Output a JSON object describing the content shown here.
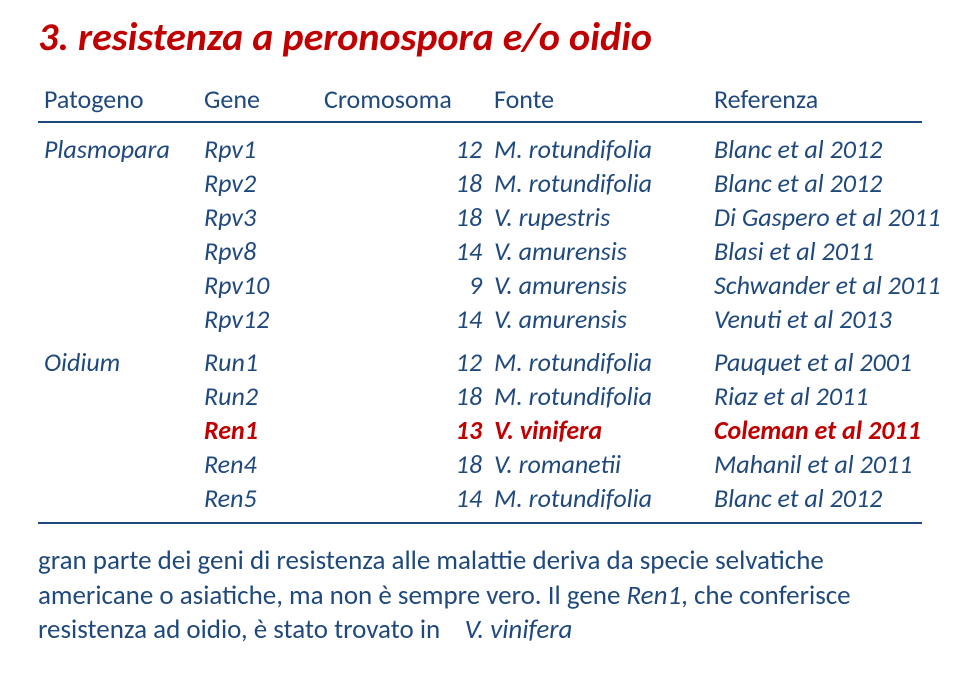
{
  "colors": {
    "text": "#1f497d",
    "title": "#c00000",
    "highlight": "#c00000",
    "rule": "#1f497d",
    "background": "#ffffff"
  },
  "title": "3. resistenza a peronospora e/o oidio",
  "headers": {
    "patogeno": "Patogeno",
    "gene": "Gene",
    "cromosoma": "Cromosoma",
    "fonte": "Fonte",
    "referenza": "Referenza"
  },
  "groups": [
    {
      "patogeno": "Plasmopara",
      "rows": [
        {
          "gene": "Rpv1",
          "chrom": "12",
          "fonte": "M. rotundifolia",
          "ref": "Blanc et al 2012",
          "highlight": false
        },
        {
          "gene": "Rpv2",
          "chrom": "18",
          "fonte": "M. rotundifolia",
          "ref": "Blanc et al 2012",
          "highlight": false
        },
        {
          "gene": "Rpv3",
          "chrom": "18",
          "fonte": "V. rupestris",
          "ref": "Di Gaspero et al 2011",
          "highlight": false
        },
        {
          "gene": "Rpv8",
          "chrom": "14",
          "fonte": "V. amurensis",
          "ref": "Blasi et al 2011",
          "highlight": false
        },
        {
          "gene": "Rpv10",
          "chrom": "9",
          "fonte": "V. amurensis",
          "ref": "Schwander et al 2011",
          "highlight": false
        },
        {
          "gene": "Rpv12",
          "chrom": "14",
          "fonte": "V. amurensis",
          "ref": "Venuti et al 2013",
          "highlight": false
        }
      ]
    },
    {
      "patogeno": "Oidium",
      "rows": [
        {
          "gene": "Run1",
          "chrom": "12",
          "fonte": "M. rotundifolia",
          "ref": "Pauquet et al 2001",
          "highlight": false
        },
        {
          "gene": "Run2",
          "chrom": "18",
          "fonte": "M. rotundifolia",
          "ref": "Riaz et al 2011",
          "highlight": false
        },
        {
          "gene": "Ren1",
          "chrom": "13",
          "fonte": "V. vinifera",
          "ref": "Coleman et al 2011",
          "highlight": true
        },
        {
          "gene": "Ren4",
          "chrom": "18",
          "fonte": "V. romanetii",
          "ref": "Mahanil et al 2011",
          "highlight": false
        },
        {
          "gene": "Ren5",
          "chrom": "14",
          "fonte": "M. rotundifolia",
          "ref": "Blanc et al 2012",
          "highlight": false
        }
      ]
    }
  ],
  "note_parts": {
    "p1": "gran parte dei geni di resistenza alle malattie deriva da specie selvatiche americane o asiatiche, ma non è sempre vero. Il gene ",
    "gene": "Ren1",
    "p2": ", che conferisce resistenza ad oidio, è stato trovato in ",
    "species": "V. vinifera"
  }
}
